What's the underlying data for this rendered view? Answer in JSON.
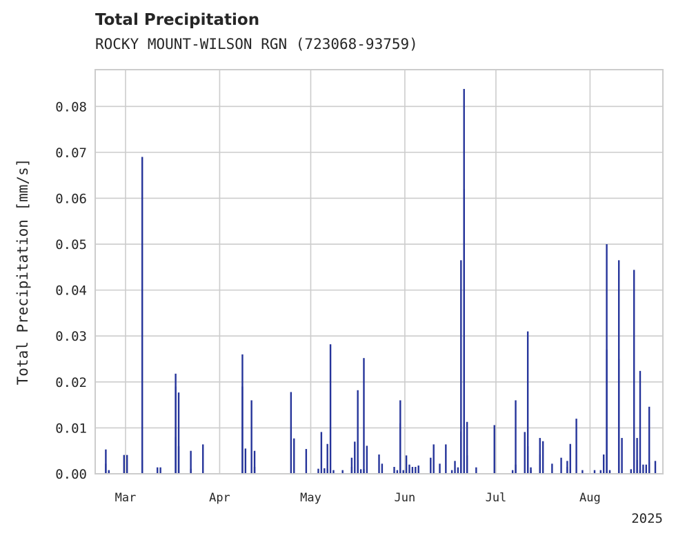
{
  "chart_data": {
    "type": "bar",
    "title": "Total Precipitation",
    "subtitle": "ROCKY MOUNT-WILSON RGN (723068-93759)",
    "ylabel": "Total Precipitation [mm/s]",
    "xlabel": "",
    "year_label": "2025",
    "ylim": [
      0,
      0.088
    ],
    "xlim": [
      "2025-02-19",
      "2025-08-25"
    ],
    "grid": true,
    "y_ticks": [
      "0.00",
      "0.01",
      "0.02",
      "0.03",
      "0.04",
      "0.05",
      "0.06",
      "0.07",
      "0.08"
    ],
    "x_ticks": [
      {
        "date": "2025-03-01",
        "label": "Mar"
      },
      {
        "date": "2025-04-01",
        "label": "Apr"
      },
      {
        "date": "2025-05-01",
        "label": "May"
      },
      {
        "date": "2025-06-01",
        "label": "Jun"
      },
      {
        "date": "2025-07-01",
        "label": "Jul"
      },
      {
        "date": "2025-08-01",
        "label": "Aug"
      }
    ],
    "series": [
      {
        "color": "#25349a",
        "points": [
          [
            "2025-02-22",
            0.0022
          ],
          [
            "2025-02-22",
            0.0053
          ],
          [
            "2025-02-23",
            0.0008
          ],
          [
            "2025-02-28",
            0.0041
          ],
          [
            "2025-03-01",
            0.0041
          ],
          [
            "2025-03-06",
            0.069
          ],
          [
            "2025-03-06",
            0.003
          ],
          [
            "2025-03-11",
            0.0014
          ],
          [
            "2025-03-12",
            0.0014
          ],
          [
            "2025-03-17",
            0.008
          ],
          [
            "2025-03-17",
            0.0218
          ],
          [
            "2025-03-17",
            0.019
          ],
          [
            "2025-03-18",
            0.0177
          ],
          [
            "2025-03-18",
            0.006
          ],
          [
            "2025-03-22",
            0.0011
          ],
          [
            "2025-03-22",
            0.005
          ],
          [
            "2025-03-26",
            0.0064
          ],
          [
            "2025-04-08",
            0.026
          ],
          [
            "2025-04-08",
            0.019
          ],
          [
            "2025-04-09",
            0.0055
          ],
          [
            "2025-04-11",
            0.016
          ],
          [
            "2025-04-12",
            0.005
          ],
          [
            "2025-04-12",
            0.0015
          ],
          [
            "2025-04-24",
            0.0178
          ],
          [
            "2025-04-25",
            0.0077
          ],
          [
            "2025-04-29",
            0.0054
          ],
          [
            "2025-05-03",
            0.0011
          ],
          [
            "2025-05-04",
            0.0091
          ],
          [
            "2025-05-05",
            0.0012
          ],
          [
            "2025-05-06",
            0.0065
          ],
          [
            "2025-05-06",
            0.001
          ],
          [
            "2025-05-07",
            0.0282
          ],
          [
            "2025-05-08",
            0.0008
          ],
          [
            "2025-05-11",
            0.0008
          ],
          [
            "2025-05-14",
            0.0035
          ],
          [
            "2025-05-14",
            0.0015
          ],
          [
            "2025-05-15",
            0.007
          ],
          [
            "2025-05-16",
            0.0182
          ],
          [
            "2025-05-16",
            0.003
          ],
          [
            "2025-05-17",
            0.001
          ],
          [
            "2025-05-18",
            0.0252
          ],
          [
            "2025-05-18",
            0.001
          ],
          [
            "2025-05-19",
            0.0061
          ],
          [
            "2025-05-23",
            0.0042
          ],
          [
            "2025-05-24",
            0.0022
          ],
          [
            "2025-05-28",
            0.0015
          ],
          [
            "2025-05-29",
            0.0008
          ],
          [
            "2025-05-30",
            0.016
          ],
          [
            "2025-05-30",
            0.011
          ],
          [
            "2025-05-31",
            0.0008
          ],
          [
            "2025-06-01",
            0.004
          ],
          [
            "2025-06-02",
            0.002
          ],
          [
            "2025-06-03",
            0.0015
          ],
          [
            "2025-06-04",
            0.0015
          ],
          [
            "2025-06-05",
            0.0018
          ],
          [
            "2025-06-09",
            0.0035
          ],
          [
            "2025-06-10",
            0.0064
          ],
          [
            "2025-06-12",
            0.0022
          ],
          [
            "2025-06-14",
            0.0064
          ],
          [
            "2025-06-16",
            0.0008
          ],
          [
            "2025-06-17",
            0.0028
          ],
          [
            "2025-06-18",
            0.0014
          ],
          [
            "2025-06-19",
            0.0092
          ],
          [
            "2025-06-19",
            0.0465
          ],
          [
            "2025-06-20",
            0.0838
          ],
          [
            "2025-06-20",
            0.062
          ],
          [
            "2025-06-21",
            0.004
          ],
          [
            "2025-06-21",
            0.0113
          ],
          [
            "2025-06-24",
            0.0014
          ],
          [
            "2025-06-30",
            0.0106
          ],
          [
            "2025-07-06",
            0.0008
          ],
          [
            "2025-07-07",
            0.016
          ],
          [
            "2025-07-07",
            0.002
          ],
          [
            "2025-07-10",
            0.0091
          ],
          [
            "2025-07-11",
            0.006
          ],
          [
            "2025-07-11",
            0.031
          ],
          [
            "2025-07-12",
            0.0014
          ],
          [
            "2025-07-12",
            0.0008
          ],
          [
            "2025-07-15",
            0.0078
          ],
          [
            "2025-07-15",
            0.0042
          ],
          [
            "2025-07-16",
            0.0071
          ],
          [
            "2025-07-19",
            0.0022
          ],
          [
            "2025-07-22",
            0.0035
          ],
          [
            "2025-07-24",
            0.0015
          ],
          [
            "2025-07-24",
            0.0028
          ],
          [
            "2025-07-25",
            0.0065
          ],
          [
            "2025-07-25",
            0.001
          ],
          [
            "2025-07-27",
            0.012
          ],
          [
            "2025-07-29",
            0.0008
          ],
          [
            "2025-08-02",
            0.0008
          ],
          [
            "2025-08-04",
            0.0008
          ],
          [
            "2025-08-05",
            0.0042
          ],
          [
            "2025-08-06",
            0.05
          ],
          [
            "2025-08-06",
            0.027
          ],
          [
            "2025-08-07",
            0.0008
          ],
          [
            "2025-08-10",
            0.0465
          ],
          [
            "2025-08-10",
            0.025
          ],
          [
            "2025-08-11",
            0.0078
          ],
          [
            "2025-08-14",
            0.001
          ],
          [
            "2025-08-15",
            0.0444
          ],
          [
            "2025-08-16",
            0.003
          ],
          [
            "2025-08-16",
            0.0078
          ],
          [
            "2025-08-17",
            0.0224
          ],
          [
            "2025-08-17",
            0.0008
          ],
          [
            "2025-08-18",
            0.002
          ],
          [
            "2025-08-19",
            0.002
          ],
          [
            "2025-08-20",
            0.0146
          ],
          [
            "2025-08-20",
            0.0025
          ],
          [
            "2025-08-22",
            0.0028
          ]
        ]
      }
    ]
  }
}
